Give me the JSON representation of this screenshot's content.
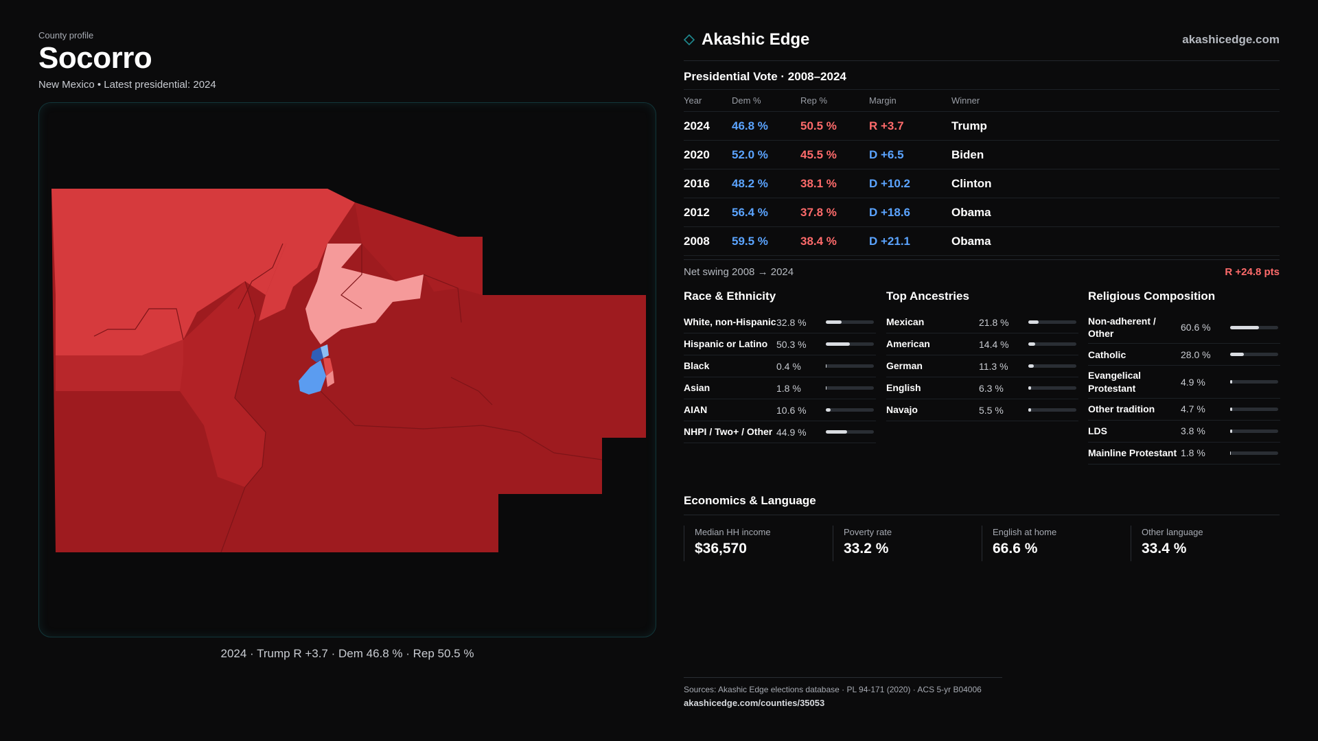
{
  "header": {
    "eyebrow": "County profile",
    "title": "Socorro",
    "subtitle": "New Mexico • Latest presidential: 2024"
  },
  "map": {
    "caption": "2024 · Trump R +3.7 · Dem 46.8 % · Rep 50.5 %"
  },
  "brand": {
    "name": "Akashic Edge",
    "url": "akashicedge.com"
  },
  "vote": {
    "title": "Presidential Vote · 2008–2024",
    "columns": [
      "Year",
      "Dem %",
      "Rep %",
      "Margin",
      "Winner"
    ],
    "rows": [
      {
        "year": "2024",
        "dem": "46.8 %",
        "rep": "50.5 %",
        "margin": "R +3.7",
        "margin_party": "rep",
        "winner": "Trump"
      },
      {
        "year": "2020",
        "dem": "52.0 %",
        "rep": "45.5 %",
        "margin": "D +6.5",
        "margin_party": "dem",
        "winner": "Biden"
      },
      {
        "year": "2016",
        "dem": "48.2 %",
        "rep": "38.1 %",
        "margin": "D +10.2",
        "margin_party": "dem",
        "winner": "Clinton"
      },
      {
        "year": "2012",
        "dem": "56.4 %",
        "rep": "37.8 %",
        "margin": "D +18.6",
        "margin_party": "dem",
        "winner": "Obama"
      },
      {
        "year": "2008",
        "dem": "59.5 %",
        "rep": "38.4 %",
        "margin": "D +21.1",
        "margin_party": "dem",
        "winner": "Obama"
      }
    ],
    "swing_label": "Net swing 2008 → 2024",
    "swing_value": "R +24.8 pts"
  },
  "race": {
    "title": "Race & Ethnicity",
    "rows": [
      {
        "label": "White, non-Hispanic",
        "value": "32.8 %",
        "pct": 32.8
      },
      {
        "label": "Hispanic or Latino",
        "value": "50.3 %",
        "pct": 50.3
      },
      {
        "label": "Black",
        "value": "0.4 %",
        "pct": 0.4
      },
      {
        "label": "Asian",
        "value": "1.8 %",
        "pct": 1.8
      },
      {
        "label": "AIAN",
        "value": "10.6 %",
        "pct": 10.6
      },
      {
        "label": "NHPI / Two+ / Other",
        "value": "44.9 %",
        "pct": 44.9
      }
    ]
  },
  "ancestry": {
    "title": "Top Ancestries",
    "rows": [
      {
        "label": "Mexican",
        "value": "21.8 %",
        "pct": 21.8
      },
      {
        "label": "American",
        "value": "14.4 %",
        "pct": 14.4
      },
      {
        "label": "German",
        "value": "11.3 %",
        "pct": 11.3
      },
      {
        "label": "English",
        "value": "6.3 %",
        "pct": 6.3
      },
      {
        "label": "Navajo",
        "value": "5.5 %",
        "pct": 5.5
      }
    ]
  },
  "religion": {
    "title": "Religious Composition",
    "rows": [
      {
        "label": "Non-adherent / Other",
        "value": "60.6 %",
        "pct": 60.6
      },
      {
        "label": "Catholic",
        "value": "28.0 %",
        "pct": 28.0
      },
      {
        "label": "Evangelical Protestant",
        "value": "4.9 %",
        "pct": 4.9
      },
      {
        "label": "Other tradition",
        "value": "4.7 %",
        "pct": 4.7
      },
      {
        "label": "LDS",
        "value": "3.8 %",
        "pct": 3.8
      },
      {
        "label": "Mainline Protestant",
        "value": "1.8 %",
        "pct": 1.8
      }
    ]
  },
  "economics": {
    "title": "Economics & Language",
    "cells": [
      {
        "label": "Median HH income",
        "value": "$36,570"
      },
      {
        "label": "Poverty rate",
        "value": "33.2 %"
      },
      {
        "label": "English at home",
        "value": "66.6 %"
      },
      {
        "label": "Other language",
        "value": "33.4 %"
      }
    ]
  },
  "footer": {
    "sources": "Sources: Akashic Edge elections database · PL 94-171 (2020) · ACS 5-yr B04006",
    "url": "akashicedge.com/counties/35053"
  },
  "colors": {
    "dem": "#5ba4ff",
    "rep": "#ff6b6b",
    "strong_rep": "#9e1b1f",
    "lean_rep": "#d63a3d",
    "light_rep": "#f59a9a",
    "accent_teal": "#12363a"
  }
}
